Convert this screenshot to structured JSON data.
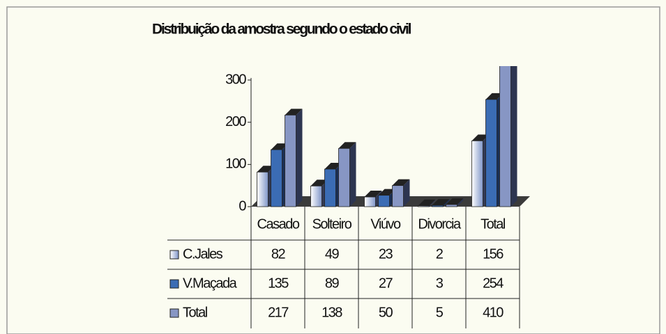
{
  "chart_data": {
    "type": "bar3d",
    "title": "Distribuição da amostra segundo o estado civil",
    "categories": [
      "Casado",
      "Solteiro",
      "Viúvo",
      "Divorcia",
      "Total"
    ],
    "series": [
      {
        "name": "C.Jales",
        "color": "#e6ecf8",
        "values": [
          82,
          49,
          23,
          2,
          156
        ]
      },
      {
        "name": "V.Maçada",
        "color": "#3b6cb4",
        "values": [
          135,
          89,
          27,
          3,
          254
        ]
      },
      {
        "name": "Total",
        "color": "#8796c4",
        "values": [
          217,
          138,
          50,
          5,
          410
        ]
      }
    ],
    "ylim": [
      0,
      300
    ],
    "yticks": [
      0,
      100,
      200,
      300
    ],
    "data_table": true
  }
}
